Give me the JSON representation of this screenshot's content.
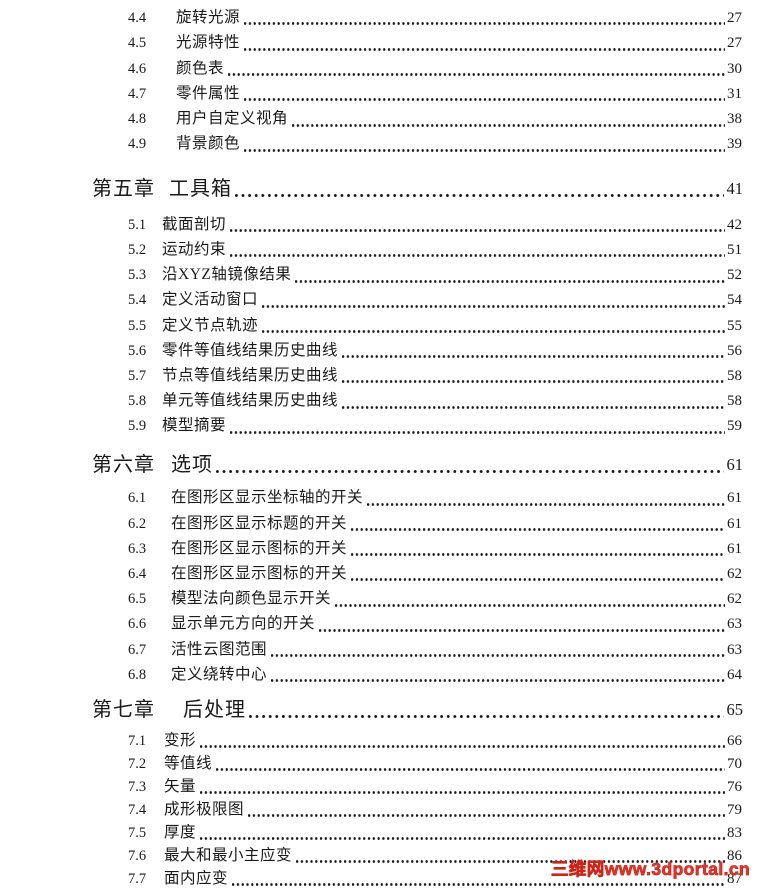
{
  "page": {
    "background": "#ffffff",
    "text_color": "#1a1a1a"
  },
  "watermark": {
    "text": "三维网www.3dportal.cn",
    "color": "#e1382b"
  },
  "toc": {
    "sections": [
      {
        "type": "items",
        "id": "ch4",
        "entries": [
          {
            "num": "4.4",
            "title": "旋转光源",
            "page": "27"
          },
          {
            "num": "4.5",
            "title": "光源特性",
            "page": "27"
          },
          {
            "num": "4.6",
            "title": "颜色表",
            "page": "30"
          },
          {
            "num": "4.7",
            "title": "零件属性",
            "page": "31"
          },
          {
            "num": "4.8",
            "title": "用户自定义视角",
            "page": "38"
          },
          {
            "num": "4.9",
            "title": "背景颜色",
            "page": "39"
          }
        ]
      },
      {
        "type": "chapter",
        "id": "ch5",
        "label": "第五章",
        "title": "工具箱",
        "page": "41"
      },
      {
        "type": "items",
        "id": "ch5",
        "entries": [
          {
            "num": "5.1",
            "title": "截面剖切",
            "page": "42"
          },
          {
            "num": "5.2",
            "title": "运动约束",
            "page": "51"
          },
          {
            "num": "5.3",
            "title": "沿XYZ轴镜像结果",
            "page": "52"
          },
          {
            "num": "5.4",
            "title": "定义活动窗口",
            "page": "54"
          },
          {
            "num": "5.5",
            "title": "定义节点轨迹",
            "page": "55"
          },
          {
            "num": "5.6",
            "title": "零件等值线结果历史曲线",
            "page": "56"
          },
          {
            "num": "5.7",
            "title": "节点等值线结果历史曲线",
            "page": "58"
          },
          {
            "num": "5.8",
            "title": "单元等值线结果历史曲线",
            "page": "58"
          },
          {
            "num": "5.9",
            "title": "模型摘要",
            "page": "59"
          }
        ]
      },
      {
        "type": "chapter",
        "id": "ch6",
        "label": "第六章",
        "title": "选项",
        "page": "61"
      },
      {
        "type": "items",
        "id": "ch6",
        "entries": [
          {
            "num": "6.1",
            "title": "在图形区显示坐标轴的开关",
            "page": "61"
          },
          {
            "num": "6.2",
            "title": "在图形区显示标题的开关",
            "page": "61"
          },
          {
            "num": "6.3",
            "title": "在图形区显示图标的开关",
            "page": "61"
          },
          {
            "num": "6.4",
            "title": "在图形区显示图标的开关",
            "page": "62"
          },
          {
            "num": "6.5",
            "title": "模型法向颜色显示开关",
            "page": "62"
          },
          {
            "num": "6.6",
            "title": "显示单元方向的开关",
            "page": "63"
          },
          {
            "num": "6.7",
            "title": "活性云图范围",
            "page": "63"
          },
          {
            "num": "6.8",
            "title": "定义绕转中心",
            "page": "64"
          }
        ]
      },
      {
        "type": "chapter",
        "id": "ch7",
        "label": "第七章",
        "title": "后处理",
        "page": "65"
      },
      {
        "type": "items",
        "id": "ch7",
        "entries": [
          {
            "num": "7.1",
            "title": "变形",
            "page": "66"
          },
          {
            "num": "7.2",
            "title": "等值线",
            "page": "70"
          },
          {
            "num": "7.3",
            "title": "矢量",
            "page": "76"
          },
          {
            "num": "7.4",
            "title": "成形极限图",
            "page": "79"
          },
          {
            "num": "7.5",
            "title": "厚度",
            "page": "83"
          },
          {
            "num": "7.6",
            "title": "最大和最小主应变",
            "page": "86"
          },
          {
            "num": "7.7",
            "title": "面内应变",
            "page": "87"
          }
        ]
      }
    ]
  }
}
